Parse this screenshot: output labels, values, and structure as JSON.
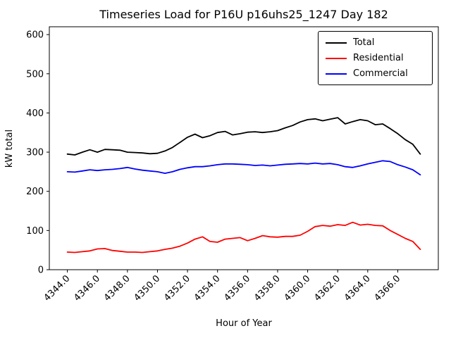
{
  "chart_data": {
    "type": "line",
    "title": "Timeseries Load for P16U p16uhs25_1247  Day 182",
    "xlabel": "Hour of Year",
    "ylabel": "kW total",
    "xlim": [
      4342.8,
      4368.7
    ],
    "ylim": [
      0,
      620
    ],
    "grid": false,
    "legend_position": "upper right",
    "xticks": [
      4344,
      4346,
      4348,
      4350,
      4352,
      4354,
      4356,
      4358,
      4360,
      4362,
      4364,
      4366
    ],
    "xtick_labels": [
      "4344.0",
      "4346.0",
      "4348.0",
      "4350.0",
      "4352.0",
      "4354.0",
      "4356.0",
      "4358.0",
      "4360.0",
      "4362.0",
      "4364.0",
      "4366.0"
    ],
    "yticks": [
      0,
      100,
      200,
      300,
      400,
      500,
      600
    ],
    "x": [
      4344.0,
      4344.5,
      4345.0,
      4345.5,
      4346.0,
      4346.5,
      4347.0,
      4347.5,
      4348.0,
      4348.5,
      4349.0,
      4349.5,
      4350.0,
      4350.5,
      4351.0,
      4351.5,
      4352.0,
      4352.5,
      4353.0,
      4353.5,
      4354.0,
      4354.5,
      4355.0,
      4355.5,
      4356.0,
      4356.5,
      4357.0,
      4357.5,
      4358.0,
      4358.5,
      4359.0,
      4359.5,
      4360.0,
      4360.5,
      4361.0,
      4361.5,
      4362.0,
      4362.5,
      4363.0,
      4363.5,
      4364.0,
      4364.5,
      4365.0,
      4365.5,
      4366.0,
      4366.5,
      4367.0,
      4367.5
    ],
    "series": [
      {
        "name": "Total",
        "color": "#000000",
        "values": [
          295,
          293,
          300,
          306,
          300,
          307,
          306,
          305,
          300,
          299,
          298,
          296,
          297,
          303,
          312,
          325,
          338,
          346,
          337,
          342,
          350,
          353,
          344,
          347,
          351,
          352,
          350,
          352,
          355,
          362,
          368,
          377,
          383,
          385,
          380,
          384,
          388,
          372,
          378,
          383,
          380,
          370,
          372,
          360,
          347,
          332,
          320,
          295
        ]
      },
      {
        "name": "Residential",
        "color": "#ff0000",
        "values": [
          45,
          44,
          46,
          48,
          53,
          54,
          49,
          47,
          45,
          45,
          44,
          46,
          48,
          52,
          55,
          60,
          68,
          78,
          84,
          72,
          70,
          78,
          80,
          82,
          74,
          80,
          87,
          84,
          83,
          85,
          85,
          88,
          98,
          110,
          113,
          111,
          115,
          113,
          121,
          114,
          116,
          113,
          112,
          100,
          90,
          80,
          72,
          52
        ]
      },
      {
        "name": "Commercial",
        "color": "#0000ff",
        "values": [
          250,
          249,
          252,
          255,
          253,
          255,
          256,
          258,
          261,
          257,
          254,
          252,
          250,
          246,
          250,
          256,
          260,
          263,
          263,
          265,
          268,
          270,
          270,
          269,
          268,
          266,
          267,
          265,
          267,
          269,
          270,
          271,
          270,
          272,
          270,
          271,
          268,
          263,
          261,
          265,
          270,
          274,
          278,
          276,
          268,
          262,
          255,
          242
        ]
      }
    ]
  }
}
